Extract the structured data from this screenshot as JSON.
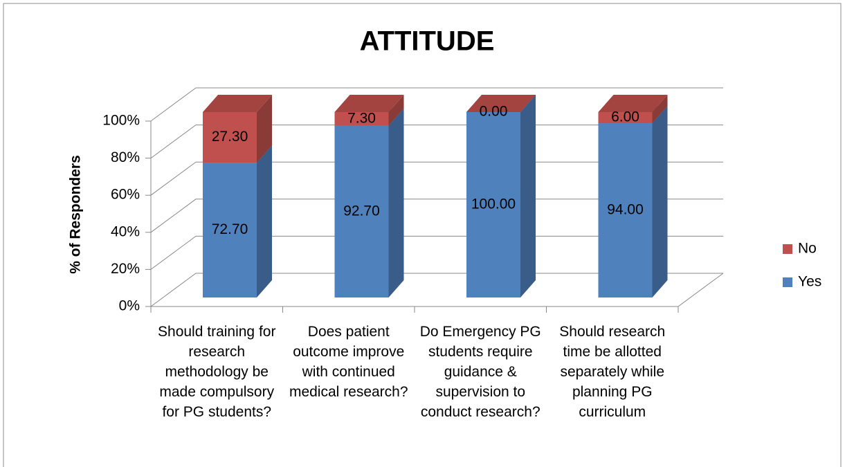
{
  "chart_data": {
    "type": "bar3d_stacked",
    "title": "ATTITUDE",
    "y_label": "% of Responders",
    "categories": [
      "Should training for research methodology be made compulsory for PG students?",
      "Does patient outcome improve with continued medical research?",
      "Do Emergency PG students require guidance & supervision to conduct research?",
      "Should research time be allotted separately while planning PG curriculum"
    ],
    "series": [
      {
        "name": "Yes",
        "color": "#4f81bd",
        "values": [
          72.7,
          92.7,
          100,
          94
        ],
        "value_labels": [
          "72.70",
          "92.70",
          "100.00",
          "94.00"
        ]
      },
      {
        "name": "No",
        "color": "#c0504d",
        "values": [
          27.3,
          7.3,
          0,
          6
        ],
        "value_labels": [
          "27.30",
          "7.30",
          "0.00",
          "6.00"
        ]
      }
    ],
    "ylim": [
      0,
      100
    ],
    "yticks": [
      {
        "value": 0,
        "label": "0%"
      },
      {
        "value": 20,
        "label": "20%"
      },
      {
        "value": 40,
        "label": "40%"
      },
      {
        "value": 60,
        "label": "60%"
      },
      {
        "value": 80,
        "label": "80%"
      },
      {
        "value": 100,
        "label": "100%"
      }
    ],
    "grid": true,
    "legend": "right"
  }
}
